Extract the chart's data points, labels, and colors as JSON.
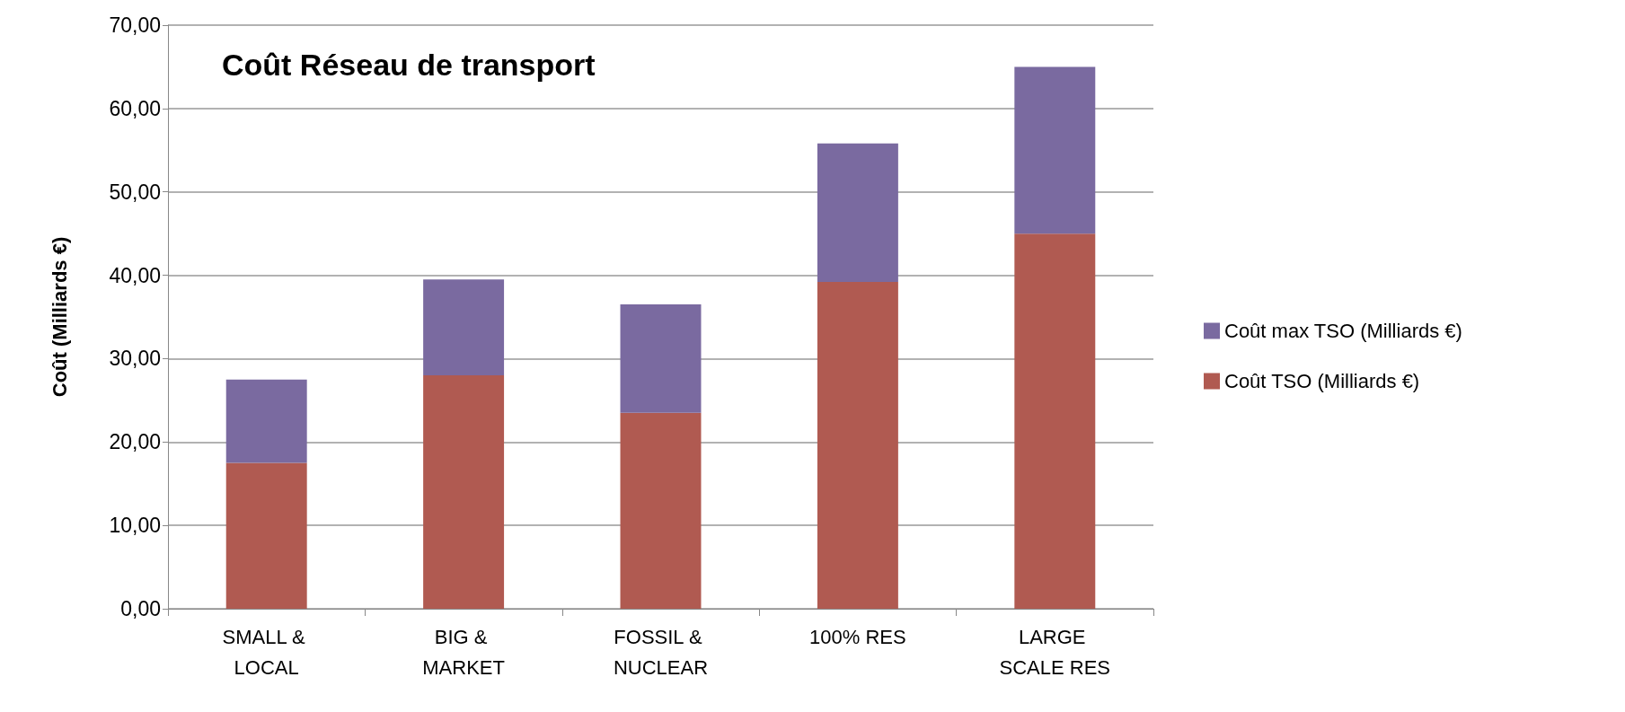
{
  "chart_data": {
    "type": "bar",
    "title": "Coût Réseau de transport",
    "ylabel": "Coût (Milliards €)",
    "categories": [
      "SMALL & LOCAL",
      "BIG & MARKET",
      "FOSSIL & NUCLEAR",
      "100% RES",
      "LARGE SCALE RES"
    ],
    "series": [
      {
        "name": "Coût TSO (Milliards €)",
        "color": "#b05a51",
        "values": [
          17.5,
          28,
          23.5,
          39.2,
          45
        ]
      },
      {
        "name": "Coût max TSO (Milliards €)",
        "color": "#7a6aa0",
        "values": [
          10,
          11.5,
          13,
          16.6,
          20
        ]
      }
    ],
    "stacked": true,
    "ylim": [
      0,
      70
    ],
    "yticks": [
      {
        "value": 0,
        "label": "0,00"
      },
      {
        "value": 10,
        "label": "10,00"
      },
      {
        "value": 20,
        "label": "20,00"
      },
      {
        "value": 30,
        "label": "30,00"
      },
      {
        "value": 40,
        "label": "40,00"
      },
      {
        "value": 50,
        "label": "50,00"
      },
      {
        "value": 60,
        "label": "60,00"
      },
      {
        "value": 70,
        "label": "70,00"
      }
    ],
    "grid": "y",
    "legend": "right"
  }
}
